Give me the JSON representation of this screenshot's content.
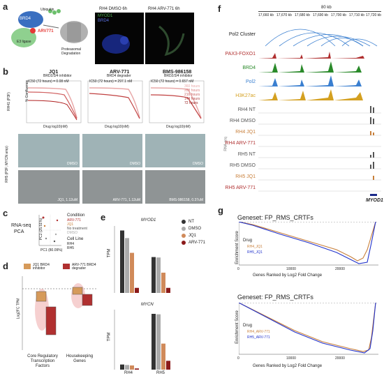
{
  "panels": {
    "a": "a",
    "b": "b",
    "c": "c",
    "d": "d",
    "e": "e",
    "f": "f",
    "g": "g"
  },
  "panel_a": {
    "labels": [
      "Ubiquitin",
      "BRD4",
      "ARV771",
      "E3 ligase",
      "Proteasomal Degradation"
    ],
    "images": [
      "RH4 DMSO 6h",
      "RH4 ARV-771 6h"
    ],
    "legend": [
      "MYOD1",
      "BRD4"
    ],
    "colors": {
      "myod1": "#4caf50",
      "brd4": "#3f51b5",
      "arv": "#e53935"
    }
  },
  "panel_b": {
    "columns": [
      {
        "title": "JQ1",
        "subtitle": "BRD2/3/4 inhibitor",
        "ic50": "IC50 (72 hours) = 0.08 nM"
      },
      {
        "title": "ARV-771",
        "subtitle": "BRD4 degrader",
        "ic50": "IC50 (72 hours) = 297.1 nM"
      },
      {
        "title": "BMS-986158",
        "subtitle": "BRD2/3/4 inhibitor",
        "ic50": "IC50 (72 hours) = 0.657 nM"
      }
    ],
    "row_labels": [
      "RH41 (P3F)",
      "RH5 (P3F; MYCN amp)"
    ],
    "y_axis": "% Confluence",
    "x_axis": "Drug log10(nM)",
    "legend": [
      "360 hours",
      "288 hours",
      "216 hours",
      "144 hours",
      "72 hours"
    ],
    "image_labels": [
      "DMSO",
      "DMSO",
      "DMSO",
      "JQ1, 1.12uM",
      "ARV-771, 1.12uM",
      "BMS-986158, 0.37uM"
    ]
  },
  "panel_c": {
    "title_left": [
      "RNA-seq",
      "PCA"
    ],
    "xlabel": "PC1 (80.09%)",
    "ylabel": "PC2 (25.51%)",
    "legend_condition_title": "Condition",
    "conditions": [
      "ARV-771",
      "JQ1",
      "No treatment",
      "DMSO"
    ],
    "legend_cell_title": "Cell Line",
    "cell_lines": [
      "RH4",
      "RH5"
    ]
  },
  "panel_d": {
    "legend": [
      "JQ1 BRD4 inhibitor",
      "ARV-771 BRD4 degrader"
    ],
    "ylabel": "Log2FC TPM",
    "categories": [
      "Core Regulatory Transcription Factors",
      "Housekeeping Genes"
    ]
  },
  "panel_e": {
    "legend": [
      "NT",
      "DMSO",
      "JQ1",
      "ARV-771"
    ],
    "legend_colors": [
      "#333333",
      "#aaaaaa",
      "#d08a5a",
      "#8b1a1a"
    ],
    "charts": [
      "MYOD1",
      "MYCN"
    ],
    "ylabel": "TPM",
    "xcats": [
      "RH4",
      "RH5"
    ]
  },
  "panel_f": {
    "scale": "80 kb",
    "coords": [
      "17,660 kb",
      "17,670 kb",
      "17,680 kb",
      "17,690 kb",
      "17,700 kb",
      "17,710 kb",
      "17,720 kb"
    ],
    "tracks": [
      {
        "name": "Pol2 Cluster",
        "color": "#1f77b4"
      },
      {
        "name": "PAX3-FOXO1",
        "color": "#b03030"
      },
      {
        "name": "BRD4",
        "color": "#2a8a2a"
      },
      {
        "name": "Pol2",
        "color": "#3a7fd0"
      },
      {
        "name": "H3K27ac",
        "color": "#d4a020"
      },
      {
        "name": "RH4 NT",
        "color": "#555555"
      },
      {
        "name": "RH4 DMSO",
        "color": "#555555"
      },
      {
        "name": "RH4 JQ1",
        "color": "#c87f3a"
      },
      {
        "name": "RH4 ARV-771",
        "color": "#b03030"
      },
      {
        "name": "RH5 NT",
        "color": "#555555"
      },
      {
        "name": "RH5 DMSO",
        "color": "#555555"
      },
      {
        "name": "RH5 JQ1",
        "color": "#c87f3a"
      },
      {
        "name": "RH5 ARV-771",
        "color": "#b03030"
      }
    ],
    "rna_label": "RNA-seq",
    "gene": "MYOD1"
  },
  "panel_g": {
    "charts": [
      {
        "title": "Geneset: FP_RMS_CRTFs",
        "legend_title": "Drug",
        "series": [
          "RH4_JQ1",
          "RH5_JQ1"
        ]
      },
      {
        "title": "Geneset: FP_RMS_CRTFs",
        "legend_title": "Drug",
        "series": [
          "RH4_ARV-771",
          "RH5_ARV-771"
        ]
      }
    ],
    "ylabel": "Enrichment Score",
    "xlabel": "Genes Ranked by Log2 Fold Change",
    "xticks": [
      "0",
      "10000",
      "20000"
    ],
    "yticks_top": [
      "0.0",
      "-0.2",
      "-0.4",
      "-0.6"
    ],
    "yticks_bottom": [
      "0.0",
      "-0.2",
      "-0.4",
      "-0.6"
    ]
  },
  "chart_data": [
    {
      "type": "bar",
      "title": "MYOD1",
      "categories": [
        "RH4",
        "RH5"
      ],
      "series": [
        {
          "name": "NT",
          "values": [
            148,
            85
          ]
        },
        {
          "name": "DMSO",
          "values": [
            130,
            84
          ]
        },
        {
          "name": "JQ1",
          "values": [
            95,
            48
          ]
        },
        {
          "name": "ARV-771",
          "values": [
            12,
            12
          ]
        }
      ],
      "ylabel": "TPM"
    },
    {
      "type": "bar",
      "title": "MYCN",
      "categories": [
        "RH4",
        "RH5"
      ],
      "series": [
        {
          "name": "NT",
          "values": [
            22,
            240
          ]
        },
        {
          "name": "DMSO",
          "values": [
            20,
            238
          ]
        },
        {
          "name": "JQ1",
          "values": [
            18,
            112
          ]
        },
        {
          "name": "ARV-771",
          "values": [
            5,
            38
          ]
        }
      ],
      "ylabel": "TPM"
    }
  ]
}
